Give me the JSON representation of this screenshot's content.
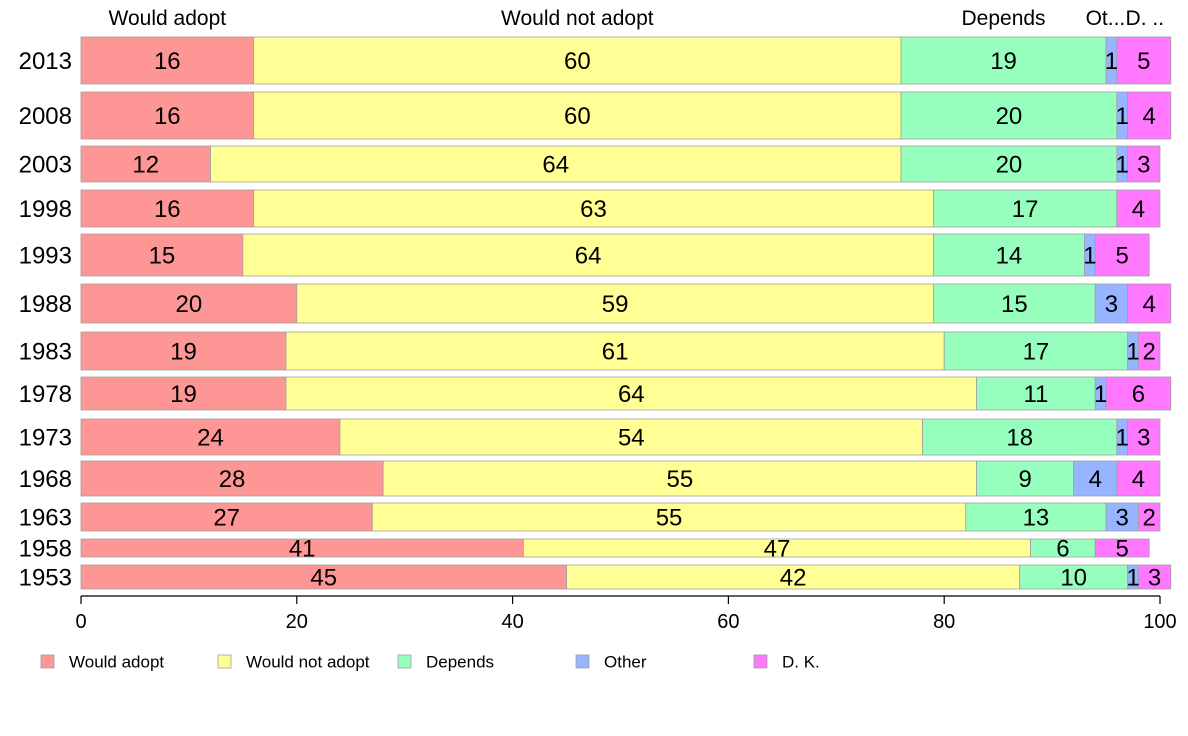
{
  "chart_data": {
    "type": "bar",
    "orientation": "horizontal",
    "stacked": true,
    "categories": [
      "2013",
      "2008",
      "2003",
      "1998",
      "1993",
      "1988",
      "1983",
      "1978",
      "1973",
      "1968",
      "1963",
      "1958",
      "1953"
    ],
    "series": [
      {
        "name": "Would adopt",
        "color": "#ff9696",
        "values": [
          16,
          16,
          12,
          16,
          15,
          20,
          19,
          19,
          24,
          28,
          27,
          41,
          45
        ]
      },
      {
        "name": "Would not adopt",
        "color": "#ffff96",
        "values": [
          60,
          60,
          64,
          63,
          64,
          59,
          61,
          64,
          54,
          55,
          55,
          47,
          42
        ]
      },
      {
        "name": "Depends",
        "color": "#96ffbe",
        "values": [
          19,
          20,
          20,
          17,
          14,
          15,
          17,
          11,
          18,
          9,
          13,
          6,
          10
        ]
      },
      {
        "name": "Other",
        "color": "#96b4ff",
        "values": [
          1,
          1,
          1,
          0,
          1,
          3,
          1,
          1,
          1,
          4,
          3,
          0,
          1
        ]
      },
      {
        "name": "D. K.",
        "color": "#ff78ff",
        "values": [
          5,
          4,
          3,
          4,
          5,
          4,
          2,
          6,
          3,
          4,
          2,
          5,
          3
        ]
      }
    ],
    "top_labels": [
      "Would adopt",
      "Would not adopt",
      "Depends",
      "Ot...",
      "D. .."
    ],
    "xticks": [
      "0",
      "20",
      "40",
      "60",
      "80",
      "100"
    ],
    "xlim": [
      0,
      100
    ],
    "grid": false,
    "legend_position": "bottom"
  }
}
